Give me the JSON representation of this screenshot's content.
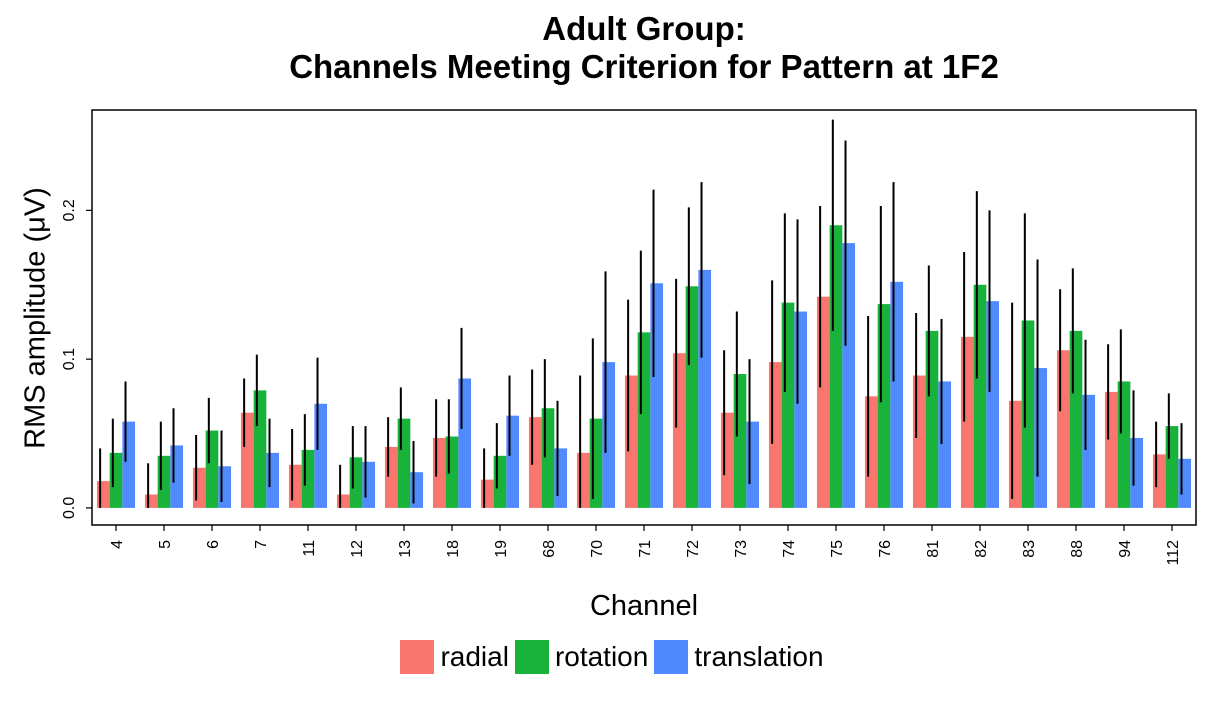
{
  "chart_data": {
    "type": "bar",
    "title_line1": "Adult Group:",
    "title_line2": "Channels Meeting Criterion for Pattern at 1F2",
    "xlabel": "Channel",
    "ylabel": "RMS amplitude (μV)",
    "ylim": [
      -0.0115,
      0.2675
    ],
    "yticks": [
      0.0,
      0.1,
      0.2
    ],
    "ytick_labels": [
      "0.0",
      "0.1",
      "0.2"
    ],
    "grid": false,
    "legend_position": "bottom",
    "categories": [
      "4",
      "5",
      "6",
      "7",
      "11",
      "12",
      "13",
      "18",
      "19",
      "68",
      "70",
      "71",
      "72",
      "73",
      "74",
      "75",
      "76",
      "81",
      "82",
      "83",
      "88",
      "94",
      "112"
    ],
    "series": [
      {
        "name": "radial",
        "color": "#F8766D",
        "values": [
          0.018,
          0.009,
          0.027,
          0.064,
          0.029,
          0.009,
          0.041,
          0.047,
          0.019,
          0.061,
          0.037,
          0.089,
          0.104,
          0.064,
          0.098,
          0.142,
          0.075,
          0.089,
          0.115,
          0.072,
          0.106,
          0.078,
          0.036
        ],
        "errors": [
          0.022,
          0.021,
          0.022,
          0.023,
          0.024,
          0.02,
          0.02,
          0.026,
          0.021,
          0.032,
          0.052,
          0.051,
          0.05,
          0.042,
          0.055,
          0.061,
          0.054,
          0.042,
          0.057,
          0.066,
          0.041,
          0.032,
          0.022
        ]
      },
      {
        "name": "rotation",
        "color": "#19B33B",
        "values": [
          0.037,
          0.035,
          0.052,
          0.079,
          0.039,
          0.034,
          0.06,
          0.048,
          0.035,
          0.067,
          0.06,
          0.118,
          0.149,
          0.09,
          0.138,
          0.19,
          0.137,
          0.119,
          0.15,
          0.126,
          0.119,
          0.085,
          0.055
        ],
        "errors": [
          0.023,
          0.023,
          0.022,
          0.024,
          0.024,
          0.021,
          0.021,
          0.025,
          0.022,
          0.033,
          0.054,
          0.055,
          0.053,
          0.042,
          0.06,
          0.071,
          0.066,
          0.044,
          0.063,
          0.072,
          0.042,
          0.035,
          0.022
        ]
      },
      {
        "name": "translation",
        "color": "#4F8AFF",
        "values": [
          0.058,
          0.042,
          0.028,
          0.037,
          0.07,
          0.031,
          0.024,
          0.087,
          0.062,
          0.04,
          0.098,
          0.151,
          0.16,
          0.058,
          0.132,
          0.178,
          0.152,
          0.085,
          0.139,
          0.094,
          0.076,
          0.047,
          0.033
        ],
        "errors": [
          0.027,
          0.025,
          0.024,
          0.023,
          0.031,
          0.024,
          0.021,
          0.034,
          0.027,
          0.032,
          0.061,
          0.063,
          0.059,
          0.042,
          0.062,
          0.069,
          0.067,
          0.042,
          0.061,
          0.073,
          0.037,
          0.032,
          0.024
        ]
      }
    ]
  }
}
